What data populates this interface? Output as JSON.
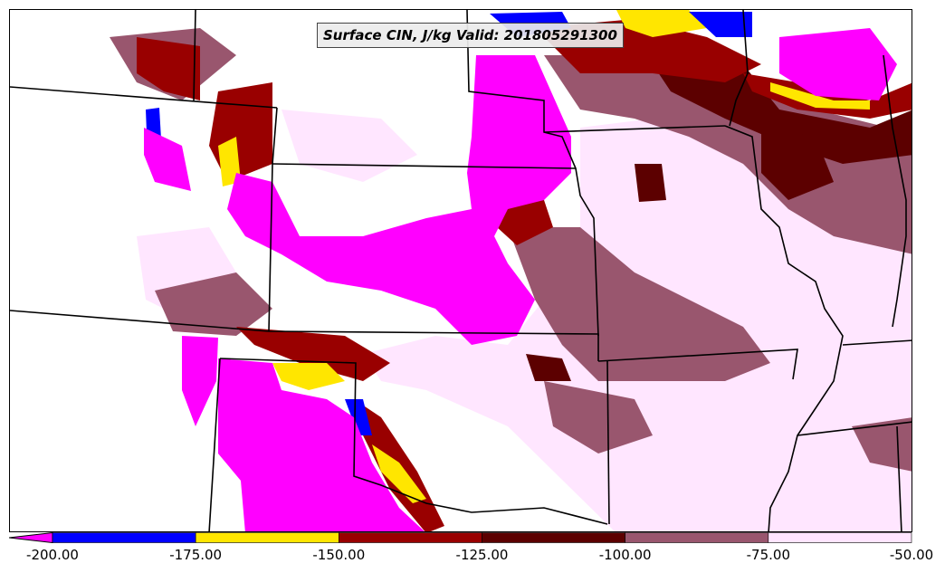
{
  "map": {
    "title": "Surface CIN, J/kg Valid: 201805291300",
    "variable": "Surface CIN",
    "units": "J/kg",
    "valid_time": "201805291300"
  },
  "colorbar": {
    "orientation": "horizontal",
    "extend": "min",
    "tick_labels": [
      "-200.00",
      "-175.00",
      "-150.00",
      "-125.00",
      "-100.00",
      "-75.00",
      "-50.00"
    ],
    "bins": [
      {
        "min": -200,
        "max": -175,
        "color": "#0000ff"
      },
      {
        "min": -175,
        "max": -150,
        "color": "#ffe600"
      },
      {
        "min": -150,
        "max": -125,
        "color": "#990000"
      },
      {
        "min": -125,
        "max": -100,
        "color": "#5c0000"
      },
      {
        "min": -100,
        "max": -75,
        "color": "#99566e"
      },
      {
        "min": -75,
        "max": -50,
        "color": "#ffe6ff"
      }
    ],
    "under_color": "#ff00ff"
  },
  "colors": {
    "below_min": "#ff00ff",
    "bin_1": "#0000ff",
    "bin_2": "#ffe600",
    "bin_3": "#990000",
    "bin_4": "#5c0000",
    "bin_5": "#99566e",
    "bin_6": "#ffe6ff",
    "background": "#ffffff",
    "borders": "#000000"
  }
}
